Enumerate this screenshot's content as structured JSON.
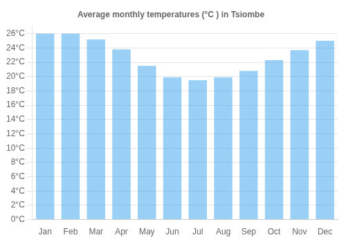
{
  "chart_data": {
    "type": "bar",
    "title": "Average monthly temperatures (°C ) in Tsiombe",
    "categories": [
      "Jan",
      "Feb",
      "Mar",
      "Apr",
      "May",
      "Jun",
      "Jul",
      "Aug",
      "Sep",
      "Oct",
      "Nov",
      "Dec"
    ],
    "values": [
      26.0,
      26.0,
      25.2,
      23.8,
      21.5,
      19.9,
      19.5,
      19.9,
      20.8,
      22.3,
      23.7,
      25.0
    ],
    "ylim": [
      0,
      27
    ],
    "yticks": [
      {
        "value": 0,
        "label": "0°C"
      },
      {
        "value": 2,
        "label": "2°C"
      },
      {
        "value": 4,
        "label": "4°C"
      },
      {
        "value": 6,
        "label": "6°C"
      },
      {
        "value": 8,
        "label": "8°C"
      },
      {
        "value": 10,
        "label": "10°C"
      },
      {
        "value": 12,
        "label": "12°C"
      },
      {
        "value": 14,
        "label": "14°C"
      },
      {
        "value": 16,
        "label": "16°C"
      },
      {
        "value": 18,
        "label": "18°C"
      },
      {
        "value": 20,
        "label": "20°C"
      },
      {
        "value": 22,
        "label": "22°C"
      },
      {
        "value": 24,
        "label": "24°C"
      },
      {
        "value": 26,
        "label": "26°C"
      }
    ],
    "grid": true
  }
}
